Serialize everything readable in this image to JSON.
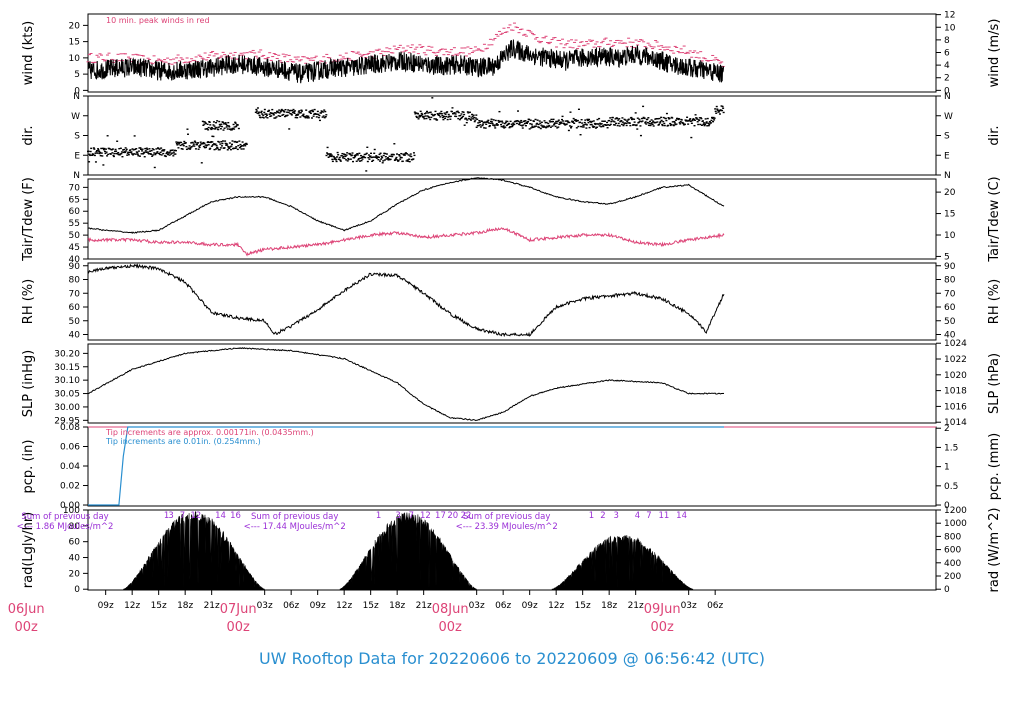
{
  "title": "UW Rooftop Data for 20220606  to  20220609 @ 06:56:42  (UTC)",
  "colors": {
    "title": "#2a8fd0",
    "red": "#dd4477",
    "blue": "#2a8fd0",
    "purple": "#9a2fd6",
    "ink": "#000000"
  },
  "time_axis": {
    "range_hours": [
      7.0,
      103.0
    ],
    "hour_ticks": [
      {
        "h": 9,
        "label": "09z"
      },
      {
        "h": 12,
        "label": "12z"
      },
      {
        "h": 15,
        "label": "15z"
      },
      {
        "h": 18,
        "label": "18z"
      },
      {
        "h": 21,
        "label": "21z"
      },
      {
        "h": 27,
        "label": "03z"
      },
      {
        "h": 30,
        "label": "06z"
      },
      {
        "h": 33,
        "label": "09z"
      },
      {
        "h": 36,
        "label": "12z"
      },
      {
        "h": 39,
        "label": "15z"
      },
      {
        "h": 42,
        "label": "18z"
      },
      {
        "h": 45,
        "label": "21z"
      },
      {
        "h": 51,
        "label": "03z"
      },
      {
        "h": 54,
        "label": "06z"
      },
      {
        "h": 57,
        "label": "09z"
      },
      {
        "h": 60,
        "label": "12z"
      },
      {
        "h": 63,
        "label": "15z"
      },
      {
        "h": 66,
        "label": "18z"
      },
      {
        "h": 69,
        "label": "21z"
      },
      {
        "h": 75,
        "label": "03z"
      },
      {
        "h": 78,
        "label": "06z"
      }
    ],
    "day_labels": [
      {
        "h": 0,
        "date": "06Jun",
        "sub": "00z"
      },
      {
        "h": 24,
        "date": "07Jun",
        "sub": "00z"
      },
      {
        "h": 48,
        "date": "08Jun",
        "sub": "00z"
      },
      {
        "h": 72,
        "date": "09Jun",
        "sub": "00z"
      }
    ]
  },
  "panels": {
    "wind": {
      "ylabel": "wind (kts)",
      "ylabel_right": "wind (m/s)",
      "yticks": [
        0,
        5,
        10,
        15,
        20
      ],
      "yticks_right": [
        0,
        2,
        4,
        6,
        8,
        10,
        12
      ],
      "note": "10 min. peak winds in red"
    },
    "dir": {
      "ylabel": "dir.",
      "ticks": [
        "N",
        "E",
        "S",
        "W",
        "N"
      ]
    },
    "temp": {
      "ylabel": "Tair/Tdew (F)",
      "ylabel_right": "Tair/Tdew (C)",
      "yticks": [
        40,
        45,
        50,
        55,
        60,
        65,
        70
      ],
      "yticks_right": [
        5,
        10,
        15,
        20
      ]
    },
    "rh": {
      "ylabel": "RH (%)",
      "ylabel_right": "RH (%)",
      "yticks": [
        40,
        50,
        60,
        70,
        80,
        90
      ]
    },
    "slp": {
      "ylabel": "SLP (inHg)",
      "ylabel_right": "SLP (hPa)",
      "yticks": [
        "29.95",
        "30.00",
        "30.05",
        "30.10",
        "30.15",
        "30.20"
      ],
      "yticks_right": [
        1014,
        1016,
        1018,
        1020,
        1022,
        1024
      ]
    },
    "pcp": {
      "ylabel": "pcp. (in)",
      "ylabel_right": "pcp. (mm)",
      "yticks": [
        "0.00",
        "0.02",
        "0.04",
        "0.06",
        "0.08"
      ],
      "yticks_right": [
        "0",
        "0.5",
        "1",
        "1.5",
        "2"
      ],
      "note_red": "Tip increments are approx. 0.00171in. (0.0435mm.)",
      "note_blue": "Tip increments are 0.01in. (0.254mm.)"
    },
    "rad": {
      "ylabel": "rad(Lgly/hr)",
      "ylabel_right": "rad (W/m^2)",
      "yticks": [
        0,
        20,
        40,
        60,
        80,
        100
      ],
      "yticks_right": [
        0,
        200,
        400,
        600,
        800,
        1000,
        1200
      ],
      "day_sums": [
        {
          "h": 4.4,
          "line1": "Sum of previous day",
          "line2": "<--- 1.86 MJoules/m^2"
        },
        {
          "h": 30.4,
          "line1": "Sum of previous day",
          "line2": "<--- 17.44 MJoules/m^2"
        },
        {
          "h": 54.4,
          "line1": "Sum of previous day",
          "line2": "<--- 23.39 MJoules/m^2"
        }
      ],
      "hour_marks": [
        {
          "h": 15.9,
          "t": "1"
        },
        {
          "h": 16.4,
          "t": "3"
        },
        {
          "h": 17.7,
          "t": "7"
        },
        {
          "h": 19.2,
          "t": "12"
        },
        {
          "h": 22.0,
          "t": "14"
        },
        {
          "h": 23.7,
          "t": "16"
        },
        {
          "h": 39.9,
          "t": "1"
        },
        {
          "h": 42.1,
          "t": "3"
        },
        {
          "h": 43.6,
          "t": "7"
        },
        {
          "h": 45.2,
          "t": "12"
        },
        {
          "h": 46.9,
          "t": "17"
        },
        {
          "h": 48.3,
          "t": "20"
        },
        {
          "h": 49.8,
          "t": "22"
        },
        {
          "h": 64.0,
          "t": "1"
        },
        {
          "h": 65.3,
          "t": "2"
        },
        {
          "h": 66.8,
          "t": "3"
        },
        {
          "h": 69.2,
          "t": "4"
        },
        {
          "h": 70.5,
          "t": "7"
        },
        {
          "h": 72.2,
          "t": "11"
        },
        {
          "h": 74.2,
          "t": "14"
        }
      ]
    }
  },
  "chart_data": {
    "type": "line",
    "x_unit": "hours since 2022-06-06 00z",
    "wind_kts": {
      "x": [
        7,
        9,
        11,
        13,
        15,
        17,
        19,
        21,
        23,
        25,
        27,
        29,
        31,
        33,
        35,
        37,
        39,
        41,
        43,
        45,
        47,
        49,
        51,
        53,
        55,
        57,
        59,
        61,
        63,
        65,
        67,
        69,
        71,
        73,
        75,
        77,
        79
      ],
      "y": [
        6,
        6.5,
        7,
        7,
        6,
        6,
        6.5,
        7,
        8,
        8,
        7,
        6.5,
        5,
        6,
        7,
        7,
        8,
        8.5,
        9,
        8,
        7.5,
        8,
        7,
        7.5,
        13,
        11,
        10,
        9,
        10,
        10.5,
        10,
        11,
        10,
        8,
        7,
        6,
        5
      ]
    },
    "wind_peak_kts": {
      "x": [
        7,
        11,
        15,
        19,
        23,
        27,
        31,
        35,
        39,
        43,
        47,
        51,
        55,
        59,
        63,
        67,
        71,
        75,
        79
      ],
      "y": [
        10,
        10,
        9,
        10,
        11,
        11,
        9,
        10,
        11,
        13,
        12,
        12,
        20,
        15,
        14,
        15,
        14,
        12,
        8
      ]
    },
    "direction": {
      "series": [
        {
          "name": "E",
          "x": [
            7,
            17
          ],
          "v": [
            1.15,
            1.15
          ]
        },
        {
          "name": "SE",
          "x": [
            17,
            25
          ],
          "v": [
            1.5,
            1.5
          ]
        },
        {
          "name": "SW",
          "x": [
            20,
            24
          ],
          "v": [
            2.5,
            2.5
          ]
        },
        {
          "name": "W",
          "x": [
            26,
            34
          ],
          "v": [
            3.1,
            3.1
          ]
        },
        {
          "name": "E",
          "x": [
            34,
            44
          ],
          "v": [
            0.9,
            0.9
          ]
        },
        {
          "name": "W",
          "x": [
            44,
            51
          ],
          "v": [
            3.0,
            3.0
          ]
        },
        {
          "name": "WSW",
          "x": [
            51,
            66
          ],
          "v": [
            2.6,
            2.6
          ]
        },
        {
          "name": "WSW",
          "x": [
            66,
            78
          ],
          "v": [
            2.7,
            2.7
          ]
        },
        {
          "name": "W",
          "x": [
            78,
            79
          ],
          "v": [
            3.3,
            3.3
          ]
        }
      ]
    },
    "tair_f": {
      "x": [
        7,
        9,
        12,
        15,
        18,
        21,
        24,
        27,
        30,
        33,
        36,
        39,
        42,
        45,
        48,
        51,
        54,
        57,
        60,
        63,
        66,
        69,
        72,
        75,
        79
      ],
      "y": [
        53,
        52,
        51,
        52,
        58,
        64,
        66,
        66,
        62,
        56,
        52,
        56,
        63,
        69,
        72,
        74,
        73,
        70,
        66,
        64,
        63,
        66,
        70,
        71,
        62
      ]
    },
    "tdew_f": {
      "x": [
        7,
        9,
        12,
        15,
        18,
        21,
        24,
        25,
        27,
        30,
        33,
        36,
        39,
        42,
        45,
        48,
        51,
        54,
        57,
        60,
        63,
        66,
        69,
        72,
        75,
        79
      ],
      "y": [
        48,
        48,
        48,
        47,
        47,
        46,
        46,
        42,
        44,
        45,
        46,
        48,
        50,
        51,
        49,
        50,
        51,
        53,
        48,
        49,
        50,
        50,
        47,
        46,
        48,
        50
      ]
    },
    "rh_pct": {
      "x": [
        7,
        9,
        12,
        15,
        18,
        21,
        24,
        27,
        28,
        30,
        33,
        36,
        39,
        42,
        45,
        48,
        51,
        54,
        57,
        60,
        63,
        66,
        69,
        72,
        75,
        77,
        79
      ],
      "y": [
        86,
        88,
        90,
        88,
        78,
        56,
        52,
        50,
        40,
        46,
        58,
        72,
        84,
        83,
        70,
        55,
        44,
        40,
        40,
        60,
        66,
        68,
        70,
        66,
        55,
        42,
        70
      ]
    },
    "slp_inhg": {
      "x": [
        7,
        12,
        18,
        24,
        30,
        36,
        42,
        45,
        48,
        51,
        54,
        57,
        60,
        66,
        72,
        75,
        79
      ],
      "y": [
        30.05,
        30.14,
        30.2,
        30.22,
        30.21,
        30.18,
        30.09,
        30.01,
        29.96,
        29.95,
        29.98,
        30.04,
        30.07,
        30.1,
        30.09,
        30.05,
        30.05
      ]
    },
    "pcp_in": {
      "x": [
        7,
        10.5,
        11,
        11.5,
        79
      ],
      "y": [
        0.0,
        0.0,
        0.05,
        0.08,
        0.08
      ]
    },
    "rad_lgly_hr": {
      "days": [
        {
          "start": 11.0,
          "end": 27.0,
          "peak": 100
        },
        {
          "start": 35.5,
          "end": 51.0,
          "peak": 98
        },
        {
          "start": 59.5,
          "end": 75.5,
          "peak": 70
        }
      ]
    }
  }
}
